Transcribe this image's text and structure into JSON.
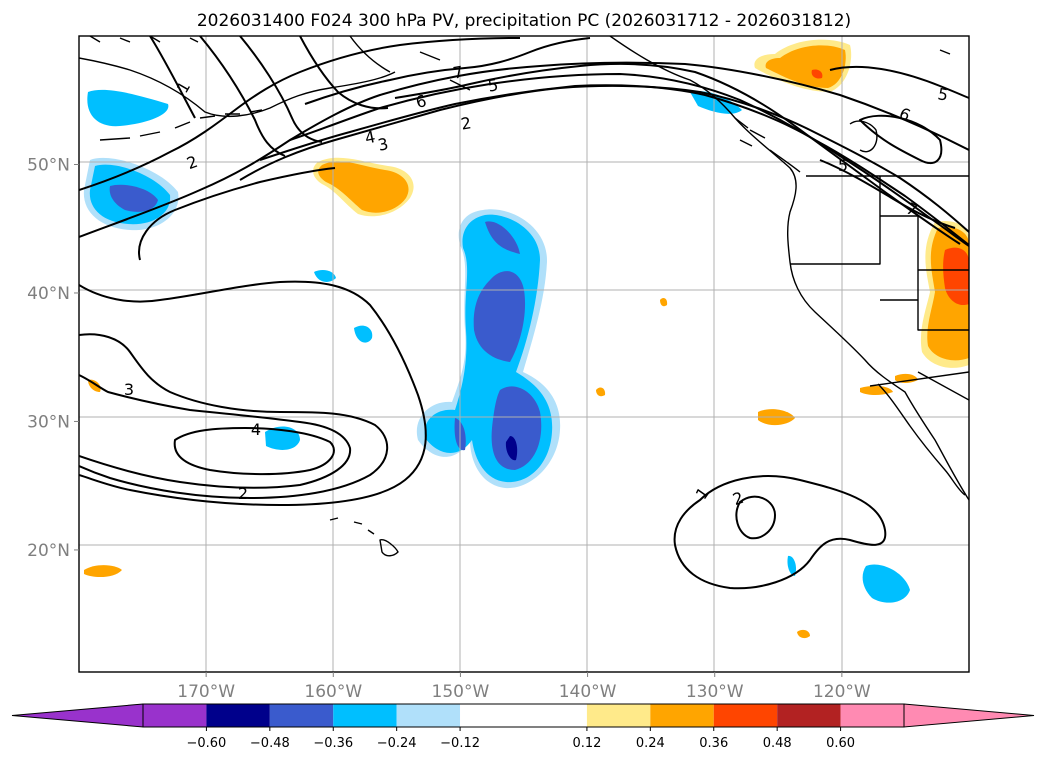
{
  "title": "2026031400 F024 300 hPa PV, precipitation PC (2026031712 - 2026031812)",
  "chart_data": {
    "type": "heatmap",
    "title": "2026031400 F024 300 hPa PV, precipitation PC (2026031712 - 2026031812)",
    "projection": "lat-lon map, North Pacific / western North America",
    "lon_range": [
      -180,
      -110
    ],
    "lat_range": [
      10.5,
      60
    ],
    "x_ticks": [
      {
        "lon": -170,
        "label": "170°W"
      },
      {
        "lon": -160,
        "label": "160°W"
      },
      {
        "lon": -150,
        "label": "150°W"
      },
      {
        "lon": -140,
        "label": "140°W"
      },
      {
        "lon": -130,
        "label": "130°W"
      },
      {
        "lon": -120,
        "label": "120°W"
      }
    ],
    "y_ticks": [
      {
        "lat": 20,
        "label": "20°N"
      },
      {
        "lat": 30,
        "label": "30°N"
      },
      {
        "lat": 40,
        "label": "40°N"
      },
      {
        "lat": 50,
        "label": "50°N"
      }
    ],
    "grid": true,
    "colorbar": {
      "orientation": "horizontal",
      "placement": "bottom",
      "extend": "both",
      "bounds": [
        -0.72,
        -0.6,
        -0.48,
        -0.36,
        -0.24,
        -0.12,
        0.12,
        0.24,
        0.36,
        0.48,
        0.6,
        0.72
      ],
      "labels": [
        "−0.60",
        "−0.48",
        "−0.36",
        "−0.24",
        "−0.12",
        "0.12",
        "0.24",
        "0.36",
        "0.48",
        "0.60"
      ],
      "label_values": [
        -0.6,
        -0.48,
        -0.36,
        -0.24,
        -0.12,
        0.12,
        0.24,
        0.36,
        0.48,
        0.6
      ],
      "colors": [
        "#9932cc",
        "#00008b",
        "#3a5bcd",
        "#00bfff",
        "#b0e0fa",
        "#ffffff",
        "#ffea8a",
        "#ffa500",
        "#ff4500",
        "#b22222",
        "#ff8ab2"
      ]
    },
    "precip_pc_areas": [
      {
        "name": "central Pacific negative band",
        "sign": "negative",
        "peak": -0.5,
        "center_lon": -145.8,
        "center_lat": 28
      },
      {
        "name": "northwest negative area",
        "sign": "negative",
        "peak": -0.4,
        "center_lon": -175.5,
        "center_lat": 47
      },
      {
        "name": "gulf of alaska positive area",
        "sign": "positive",
        "peak": 0.3,
        "center_lon": -157,
        "center_lat": 48.5
      },
      {
        "name": "california coast positive area",
        "sign": "positive",
        "peak": 0.4,
        "center_lon": -112,
        "center_lat": 40.5
      },
      {
        "name": "subtropical negative area",
        "sign": "negative",
        "peak": -0.3,
        "center_lon": -166,
        "center_lat": 28.5
      }
    ],
    "pv_contours": [
      {
        "level": 1,
        "label": "1"
      },
      {
        "level": 2,
        "label": "2"
      },
      {
        "level": 3,
        "label": "3"
      },
      {
        "level": 4,
        "label": "4"
      },
      {
        "level": 5,
        "label": "5"
      },
      {
        "level": 6,
        "label": "6"
      },
      {
        "level": 7,
        "label": "7"
      }
    ]
  }
}
